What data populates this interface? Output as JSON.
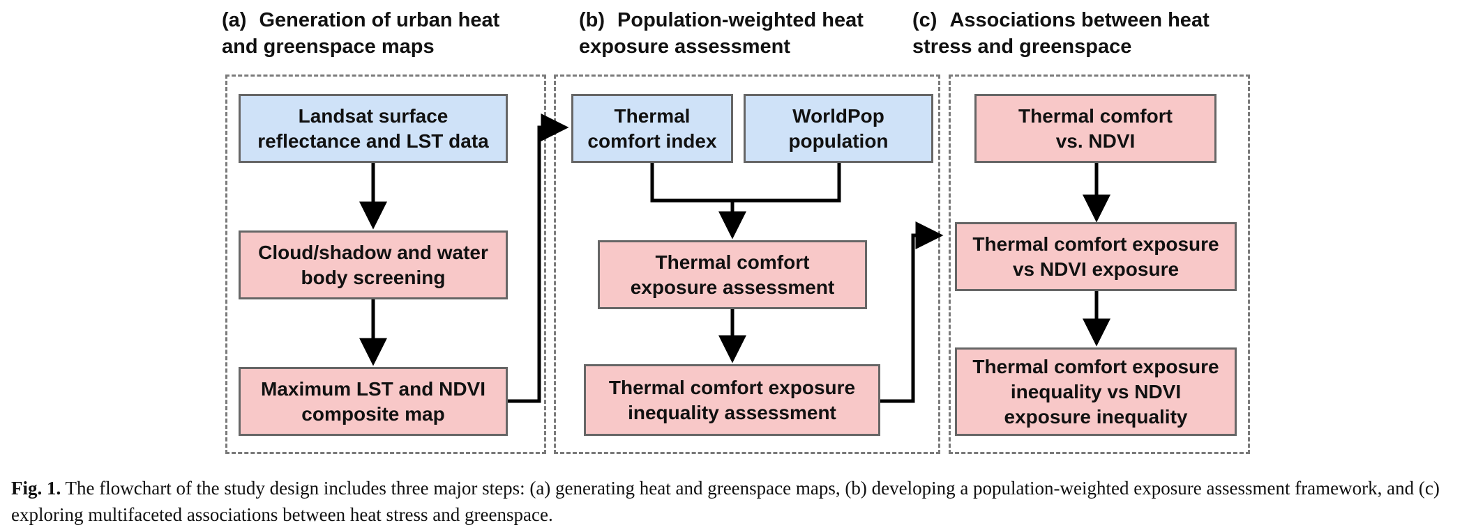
{
  "sections": [
    {
      "letter": "(a)",
      "title": "Generation of urban heat\nand greenspace maps"
    },
    {
      "letter": "(b)",
      "title": "Population-weighted heat\nexposure assessment"
    },
    {
      "letter": "(c)",
      "title": "Associations between heat\nstress and greenspace"
    }
  ],
  "nodes": {
    "landsat": "Landsat surface\nreflectance and LST data",
    "cloud": "Cloud/shadow and water\nbody screening",
    "maxlst": "Maximum LST and NDVI\ncomposite map",
    "tci": "Thermal\ncomfort index",
    "worldpop": "WorldPop\npopulation",
    "tc_exposure": "Thermal comfort\nexposure assessment",
    "tc_inequality": "Thermal comfort exposure\ninequality assessment",
    "tc_ndvi": "Thermal comfort\nvs. NDVI",
    "tc_exp_ndvi_exp": "Thermal comfort exposure\nvs  NDVI exposure",
    "tc_ineq_ndvi_ineq": "Thermal comfort exposure\ninequality vs  NDVI\nexposure inequality"
  },
  "colors": {
    "input": "#cfe2f8",
    "process": "#f8c8c8",
    "border": "#666666",
    "arrow": "#000000"
  },
  "caption": {
    "label": "Fig. 1.",
    "text": " The flowchart of the study design includes three major steps: (a) generating heat and greenspace maps, (b) developing a population-weighted exposure assessment framework, and (c) exploring multifaceted associations between heat stress and greenspace."
  }
}
